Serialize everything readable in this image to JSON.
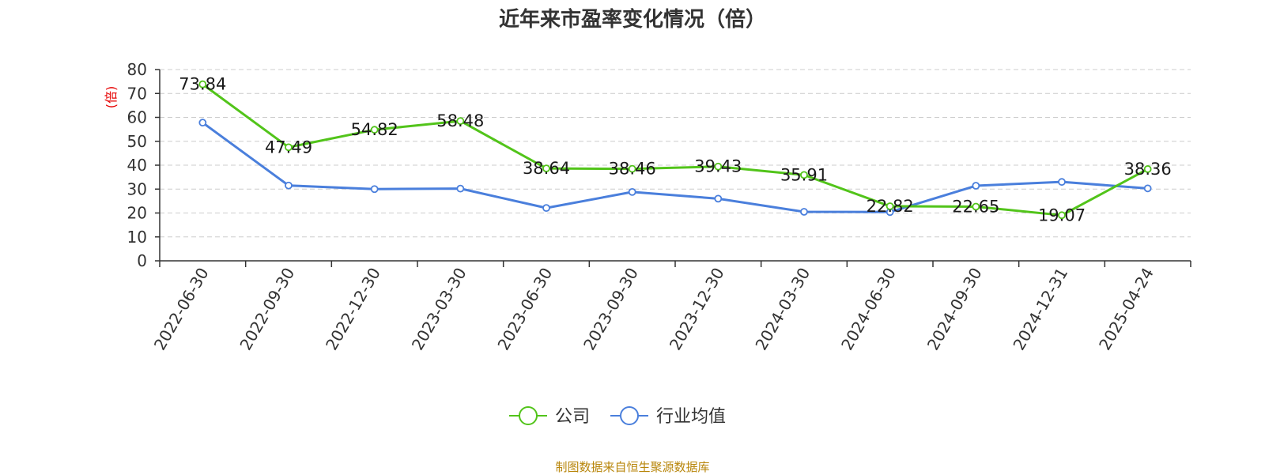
{
  "title": "近年来市盈率变化情况（倍）",
  "source_note": "制图数据来自恒生聚源数据库",
  "chart_data": {
    "type": "line",
    "title": "近年来市盈率变化情况（倍）",
    "ylabel": "(倍)",
    "xlabel": "",
    "ylim": [
      0,
      80
    ],
    "yticks": [
      0,
      10,
      20,
      30,
      40,
      50,
      60,
      70,
      80
    ],
    "grid": true,
    "legend_position": "bottom",
    "categories": [
      "2022-06-30",
      "2022-09-30",
      "2022-12-30",
      "2023-03-30",
      "2023-06-30",
      "2023-09-30",
      "2023-12-30",
      "2024-03-30",
      "2024-06-30",
      "2024-09-30",
      "2024-12-31",
      "2025-04-24"
    ],
    "series": [
      {
        "name": "公司",
        "color": "#52c41a",
        "values": [
          73.84,
          47.49,
          54.82,
          58.48,
          38.64,
          38.46,
          39.43,
          35.91,
          22.82,
          22.65,
          19.07,
          38.36
        ],
        "labels": [
          "73.84",
          "47.49",
          "54.82",
          "58.48",
          "38.64",
          "38.46",
          "39.43",
          "35.91",
          "22.82",
          "22.65",
          "19.07",
          "38.36"
        ]
      },
      {
        "name": "行业均值",
        "color": "#4a7fdc",
        "values": [
          57.8,
          31.5,
          30.0,
          30.2,
          22.1,
          28.8,
          26.0,
          20.5,
          20.4,
          31.4,
          33.0,
          30.3
        ]
      }
    ]
  }
}
